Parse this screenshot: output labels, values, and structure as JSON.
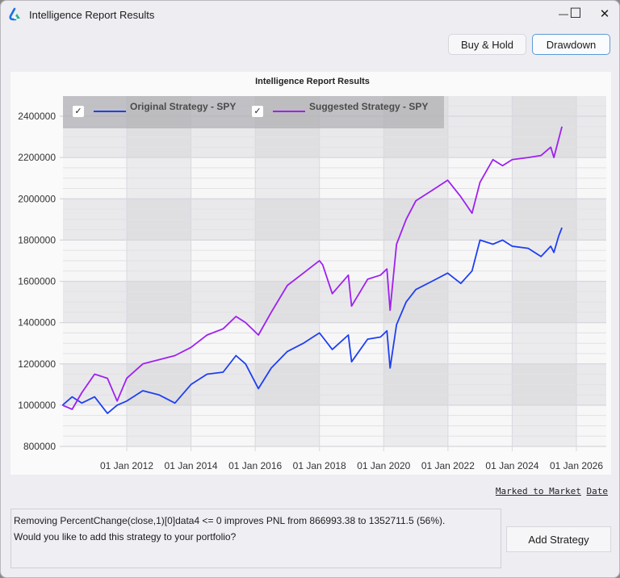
{
  "window": {
    "title": "Intelligence Report Results",
    "controls": {
      "minimize": "—",
      "maximize": "☐",
      "close": "✕"
    }
  },
  "toolbar": {
    "buy_hold_label": "Buy & Hold",
    "drawdown_label": "Drawdown"
  },
  "legend": {
    "items": [
      {
        "label": "Original Strategy - SPY",
        "checked": "✓",
        "color": "#1f3ff0"
      },
      {
        "label": "Suggested Strategy - SPY",
        "checked": "✓",
        "color": "#a020f0"
      }
    ]
  },
  "footer": {
    "axis_mode_prefix": "Marked to Market",
    "axis_mode_suffix": "Date",
    "message_line1": "Removing PercentChange(close,1)[0]data4 <= 0 improves PNL from 866993.38 to 1352711.5 (56%).",
    "message_line2": "Would you like to add this strategy to your portfolio?",
    "add_strategy_label": "Add Strategy"
  },
  "chart_data": {
    "type": "line",
    "title": "Intelligence Report Results",
    "xlabel": "",
    "ylabel": "",
    "x_tick_labels": [
      "01 Jan 2012",
      "01 Jan 2014",
      "01 Jan 2016",
      "01 Jan 2018",
      "01 Jan 2020",
      "01 Jan 2022",
      "01 Jan 2024",
      "01 Jan 2026"
    ],
    "y_tick_labels": [
      "2400000",
      "2200000",
      "2000000",
      "1800000",
      "1600000",
      "1400000",
      "1200000",
      "1000000",
      "800000"
    ],
    "xlim": [
      2010.0,
      2027.0
    ],
    "ylim": [
      800000,
      2500000
    ],
    "grid": true,
    "legend_position": "top-left",
    "x": [
      2010.0,
      2010.3,
      2010.6,
      2011.0,
      2011.4,
      2011.7,
      2012.0,
      2012.5,
      2013.0,
      2013.5,
      2014.0,
      2014.5,
      2015.0,
      2015.4,
      2015.7,
      2016.1,
      2016.5,
      2017.0,
      2017.5,
      2018.0,
      2018.1,
      2018.4,
      2018.9,
      2019.0,
      2019.5,
      2019.9,
      2020.1,
      2020.2,
      2020.4,
      2020.7,
      2021.0,
      2021.5,
      2021.99,
      2022.4,
      2022.75,
      2023.0,
      2023.4,
      2023.7,
      2024.0,
      2024.5,
      2024.9,
      2025.2,
      2025.3,
      2025.45,
      2025.55
    ],
    "series": [
      {
        "name": "Original Strategy - SPY",
        "color": "#1f3ff0",
        "values": [
          1000000,
          1040000,
          1010000,
          1040000,
          960000,
          1000000,
          1020000,
          1070000,
          1050000,
          1010000,
          1100000,
          1150000,
          1160000,
          1240000,
          1200000,
          1080000,
          1180000,
          1260000,
          1300000,
          1350000,
          1330000,
          1270000,
          1340000,
          1210000,
          1320000,
          1330000,
          1360000,
          1180000,
          1390000,
          1500000,
          1560000,
          1600000,
          1640000,
          1590000,
          1650000,
          1800000,
          1780000,
          1800000,
          1770000,
          1760000,
          1720000,
          1770000,
          1740000,
          1820000,
          1860000
        ]
      },
      {
        "name": "Suggested Strategy - SPY",
        "color": "#a020f0",
        "values": [
          1000000,
          980000,
          1060000,
          1150000,
          1130000,
          1020000,
          1130000,
          1200000,
          1220000,
          1240000,
          1280000,
          1340000,
          1370000,
          1430000,
          1400000,
          1340000,
          1450000,
          1580000,
          1640000,
          1700000,
          1680000,
          1540000,
          1630000,
          1480000,
          1610000,
          1630000,
          1660000,
          1460000,
          1780000,
          1900000,
          1990000,
          2040000,
          2090000,
          2010000,
          1930000,
          2080000,
          2190000,
          2160000,
          2190000,
          2200000,
          2210000,
          2250000,
          2200000,
          2290000,
          2350000
        ]
      }
    ]
  }
}
